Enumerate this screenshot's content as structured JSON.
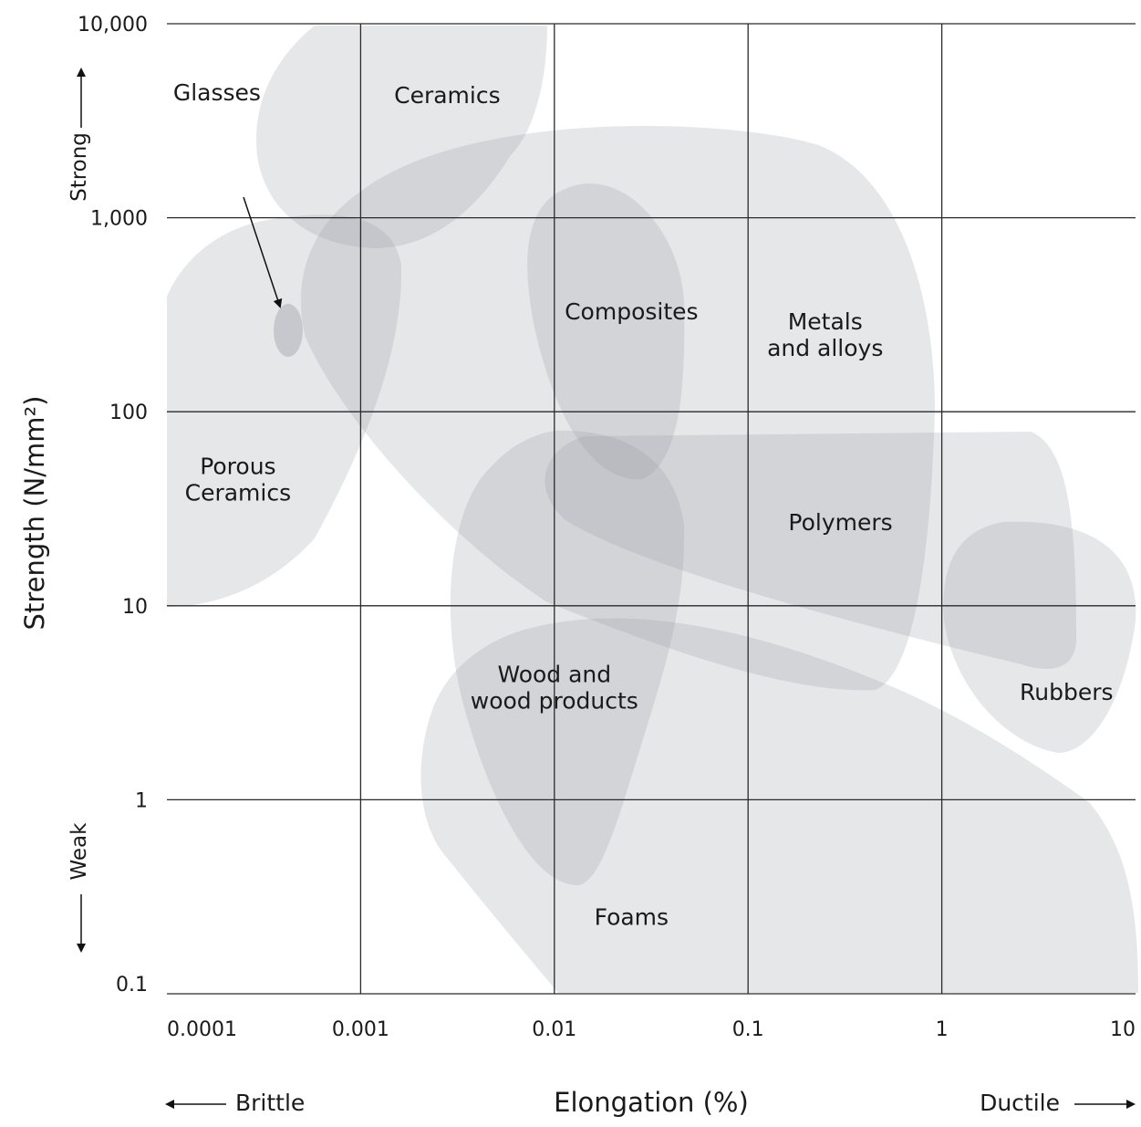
{
  "chart_data": {
    "type": "region-map",
    "xlabel": "Elongation (%)",
    "ylabel": "Strength (N/mm²)",
    "x_scale": "log",
    "y_scale": "log",
    "xlim": [
      0.0001,
      10
    ],
    "ylim": [
      0.1,
      10000
    ],
    "grid": true,
    "x_ticks": [
      {
        "value": 0.0001,
        "label": "0.0001"
      },
      {
        "value": 0.001,
        "label": "0.001"
      },
      {
        "value": 0.01,
        "label": "0.01"
      },
      {
        "value": 0.1,
        "label": "0.1"
      },
      {
        "value": 1,
        "label": "1"
      },
      {
        "value": 10,
        "label": "10"
      }
    ],
    "y_ticks": [
      {
        "value": 10000,
        "label": "10,000"
      },
      {
        "value": 1000,
        "label": "1,000"
      },
      {
        "value": 100,
        "label": "100"
      },
      {
        "value": 10,
        "label": "10"
      },
      {
        "value": 1,
        "label": "1"
      },
      {
        "value": 0.1,
        "label": "0.1"
      }
    ],
    "y_direction": {
      "high": "Strong",
      "low": "Weak"
    },
    "x_direction": {
      "low": "Brittle",
      "high": "Ductile"
    },
    "regions": [
      {
        "name": "Ceramics",
        "lines": [
          "Ceramics"
        ],
        "center": {
          "x": 0.0028,
          "y": 4300
        },
        "x_range": [
          0.00045,
          0.012
        ],
        "y_range": [
          750,
          10000
        ]
      },
      {
        "name": "Glasses",
        "lines": [
          "Glasses"
        ],
        "center": {
          "x": 0.0004,
          "y": 280
        },
        "x_range": [
          0.00035,
          0.00045
        ],
        "y_range": [
          200,
          370
        ]
      },
      {
        "name": "Porous Ceramics",
        "lines": [
          "Porous",
          "Ceramics"
        ],
        "center": {
          "x": 0.0004,
          "y": 45
        },
        "x_range": [
          0.0001,
          0.0015
        ],
        "y_range": [
          10,
          1000
        ]
      },
      {
        "name": "Composites",
        "lines": [
          "Composites"
        ],
        "center": {
          "x": 0.025,
          "y": 330
        },
        "x_range": [
          0.01,
          0.06
        ],
        "y_range": [
          50,
          1600
        ]
      },
      {
        "name": "Metals and alloys",
        "lines": [
          "Metals",
          "and alloys"
        ],
        "center": {
          "x": 0.25,
          "y": 250
        },
        "x_range": [
          0.0006,
          1
        ],
        "y_range": [
          4,
          2200
        ]
      },
      {
        "name": "Polymers",
        "lines": [
          "Polymers"
        ],
        "center": {
          "x": 0.3,
          "y": 27
        },
        "x_range": [
          0.012,
          5.5
        ],
        "y_range": [
          5.5,
          100
        ]
      },
      {
        "name": "Rubbers",
        "lines": [
          "Rubbers"
        ],
        "center": {
          "x": 4.4,
          "y": 3.6
        },
        "x_range": [
          0.9,
          10
        ],
        "y_range": [
          1.8,
          30
        ]
      },
      {
        "name": "Wood and wood products",
        "lines": [
          "Wood and",
          "wood products"
        ],
        "center": {
          "x": 0.01,
          "y": 3.8
        },
        "x_range": [
          0.004,
          0.03
        ],
        "y_range": [
          0.35,
          100
        ]
      },
      {
        "name": "Foams",
        "lines": [
          "Foams"
        ],
        "center": {
          "x": 0.025,
          "y": 0.25
        },
        "x_range": [
          0.003,
          10
        ],
        "y_range": [
          0.1,
          10
        ]
      }
    ],
    "annotations": [
      {
        "text": "Glasses",
        "points_to": "Glasses",
        "arrow": true
      }
    ]
  }
}
